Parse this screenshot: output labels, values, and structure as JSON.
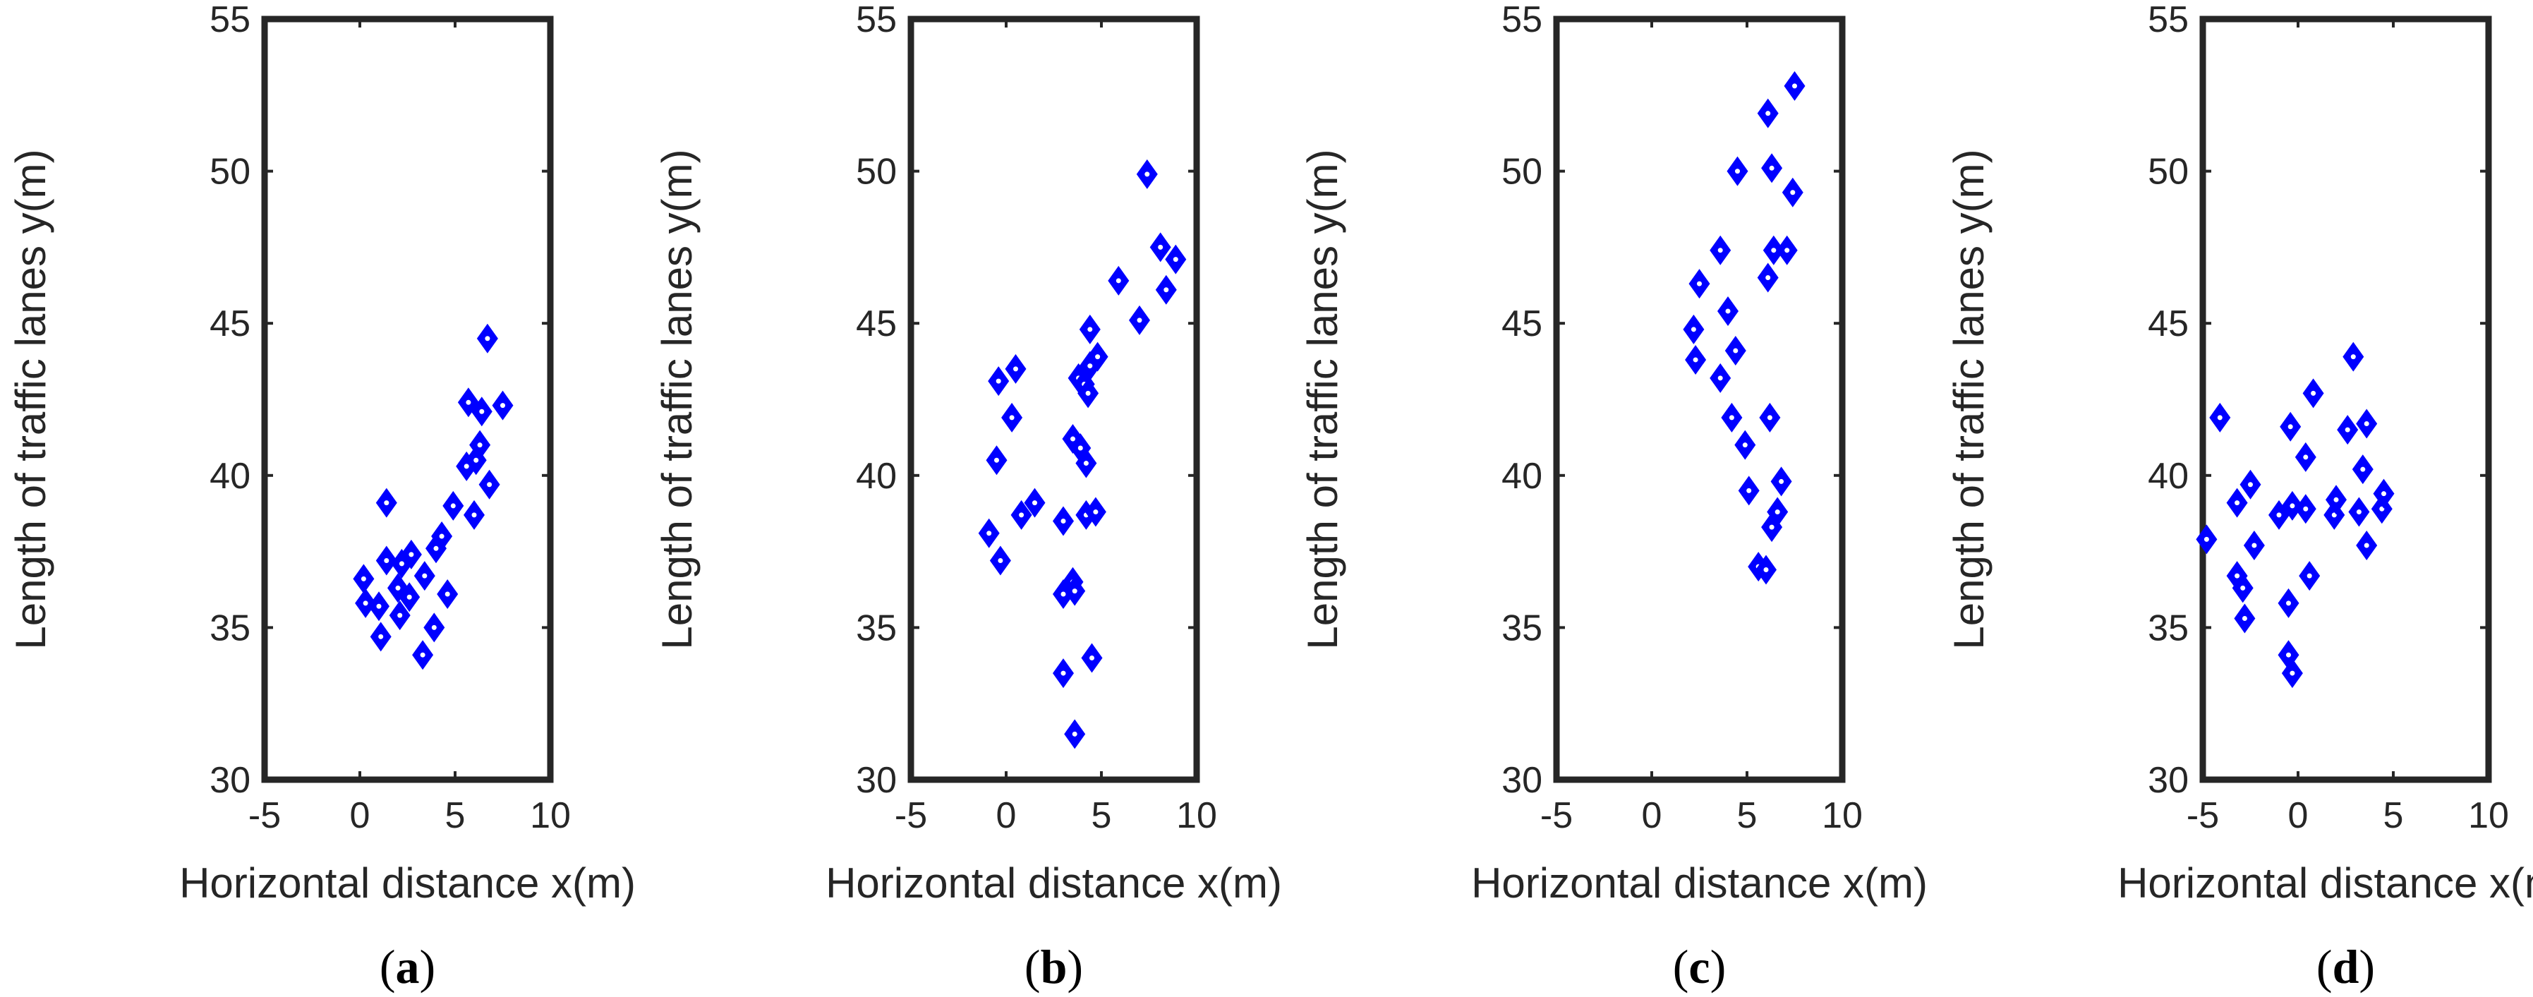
{
  "chart_data": [
    {
      "type": "scatter",
      "label": "(a)",
      "xlabel": "Horizontal distance x(m)",
      "ylabel": "Length of traffic lanes y(m)",
      "xlim": [
        -5,
        10
      ],
      "ylim": [
        30,
        55
      ],
      "xticks": [
        "-5",
        "0",
        "5",
        "10"
      ],
      "yticks": [
        "30",
        "35",
        "40",
        "45",
        "50",
        "55"
      ],
      "marker": "diamond",
      "color": "#0000ff",
      "points": [
        [
          0.2,
          36.6
        ],
        [
          0.3,
          35.8
        ],
        [
          1.0,
          35.7
        ],
        [
          1.1,
          34.7
        ],
        [
          1.4,
          39.1
        ],
        [
          1.4,
          37.2
        ],
        [
          2.0,
          36.3
        ],
        [
          2.1,
          35.4
        ],
        [
          2.2,
          37.1
        ],
        [
          2.6,
          36.0
        ],
        [
          2.7,
          37.4
        ],
        [
          3.3,
          34.1
        ],
        [
          3.4,
          36.7
        ],
        [
          3.9,
          35.0
        ],
        [
          4.0,
          37.6
        ],
        [
          4.3,
          38.0
        ],
        [
          4.6,
          36.1
        ],
        [
          4.9,
          39.0
        ],
        [
          5.6,
          40.3
        ],
        [
          5.7,
          42.4
        ],
        [
          6.0,
          38.7
        ],
        [
          6.1,
          40.5
        ],
        [
          6.3,
          41.0
        ],
        [
          6.4,
          42.1
        ],
        [
          6.8,
          39.7
        ],
        [
          6.7,
          44.5
        ],
        [
          7.5,
          42.3
        ]
      ]
    },
    {
      "type": "scatter",
      "label": "(b)",
      "xlabel": "Horizontal distance x(m)",
      "ylabel": "Length of traffic lanes y(m)",
      "xlim": [
        -5,
        10
      ],
      "ylim": [
        30,
        55
      ],
      "xticks": [
        "-5",
        "0",
        "5",
        "10"
      ],
      "yticks": [
        "30",
        "35",
        "40",
        "45",
        "50",
        "55"
      ],
      "marker": "diamond",
      "color": "#0000ff",
      "points": [
        [
          -0.9,
          38.1
        ],
        [
          -0.5,
          40.5
        ],
        [
          -0.4,
          43.1
        ],
        [
          -0.3,
          37.2
        ],
        [
          0.3,
          41.9
        ],
        [
          0.5,
          43.5
        ],
        [
          0.8,
          38.7
        ],
        [
          1.5,
          39.1
        ],
        [
          3.0,
          38.5
        ],
        [
          3.0,
          36.1
        ],
        [
          3.0,
          33.5
        ],
        [
          3.5,
          36.5
        ],
        [
          3.6,
          36.2
        ],
        [
          3.5,
          41.2
        ],
        [
          3.6,
          31.5
        ],
        [
          3.8,
          43.2
        ],
        [
          3.9,
          40.9
        ],
        [
          4.1,
          43.0
        ],
        [
          4.2,
          38.7
        ],
        [
          4.2,
          40.4
        ],
        [
          4.3,
          42.7
        ],
        [
          4.4,
          43.6
        ],
        [
          4.4,
          44.8
        ],
        [
          4.5,
          34.0
        ],
        [
          4.7,
          38.8
        ],
        [
          4.8,
          43.9
        ],
        [
          5.9,
          46.4
        ],
        [
          7.0,
          45.1
        ],
        [
          7.4,
          49.9
        ],
        [
          8.1,
          47.5
        ],
        [
          8.4,
          46.1
        ],
        [
          8.9,
          47.1
        ]
      ]
    },
    {
      "type": "scatter",
      "label": "(c)",
      "xlabel": "Horizontal distance x(m)",
      "ylabel": "Length of traffic lanes y(m)",
      "xlim": [
        -5,
        10
      ],
      "ylim": [
        30,
        55
      ],
      "xticks": [
        "-5",
        "0",
        "5",
        "10"
      ],
      "yticks": [
        "30",
        "35",
        "40",
        "45",
        "50",
        "55"
      ],
      "marker": "diamond",
      "color": "#0000ff",
      "points": [
        [
          2.2,
          44.8
        ],
        [
          2.3,
          43.8
        ],
        [
          2.5,
          46.3
        ],
        [
          3.6,
          47.4
        ],
        [
          3.6,
          43.2
        ],
        [
          4.0,
          45.4
        ],
        [
          4.2,
          41.9
        ],
        [
          4.4,
          44.1
        ],
        [
          4.5,
          50.0
        ],
        [
          4.9,
          41.0
        ],
        [
          5.1,
          39.5
        ],
        [
          5.6,
          37.0
        ],
        [
          6.0,
          36.9
        ],
        [
          6.1,
          46.5
        ],
        [
          6.1,
          51.9
        ],
        [
          6.2,
          41.9
        ],
        [
          6.3,
          50.1
        ],
        [
          6.3,
          38.3
        ],
        [
          6.4,
          47.4
        ],
        [
          6.6,
          38.8
        ],
        [
          6.8,
          39.8
        ],
        [
          7.1,
          47.4
        ],
        [
          7.4,
          49.3
        ],
        [
          7.5,
          52.8
        ]
      ]
    },
    {
      "type": "scatter",
      "label": "(d)",
      "xlabel": "Horizontal distance x(m)",
      "ylabel": "Length of traffic lanes y(m)",
      "xlim": [
        -5,
        10
      ],
      "ylim": [
        30,
        55
      ],
      "xticks": [
        "-5",
        "0",
        "5",
        "10"
      ],
      "yticks": [
        "30",
        "35",
        "40",
        "45",
        "50",
        "55"
      ],
      "marker": "diamond",
      "color": "#0000ff",
      "points": [
        [
          -4.8,
          37.9
        ],
        [
          -4.1,
          41.9
        ],
        [
          -3.2,
          39.1
        ],
        [
          -3.2,
          36.7
        ],
        [
          -2.9,
          36.3
        ],
        [
          -2.8,
          35.3
        ],
        [
          -2.5,
          39.7
        ],
        [
          -2.3,
          37.7
        ],
        [
          -1.0,
          38.7
        ],
        [
          -0.5,
          35.8
        ],
        [
          -0.5,
          34.1
        ],
        [
          -0.4,
          41.6
        ],
        [
          -0.3,
          39.0
        ],
        [
          -0.3,
          33.5
        ],
        [
          0.4,
          38.9
        ],
        [
          0.4,
          40.6
        ],
        [
          0.6,
          36.7
        ],
        [
          0.8,
          42.7
        ],
        [
          1.9,
          38.7
        ],
        [
          2.0,
          39.2
        ],
        [
          2.6,
          41.5
        ],
        [
          2.9,
          43.9
        ],
        [
          3.2,
          38.8
        ],
        [
          3.4,
          40.2
        ],
        [
          3.6,
          37.7
        ],
        [
          3.6,
          41.7
        ],
        [
          4.4,
          38.9
        ],
        [
          4.5,
          39.4
        ]
      ]
    }
  ]
}
